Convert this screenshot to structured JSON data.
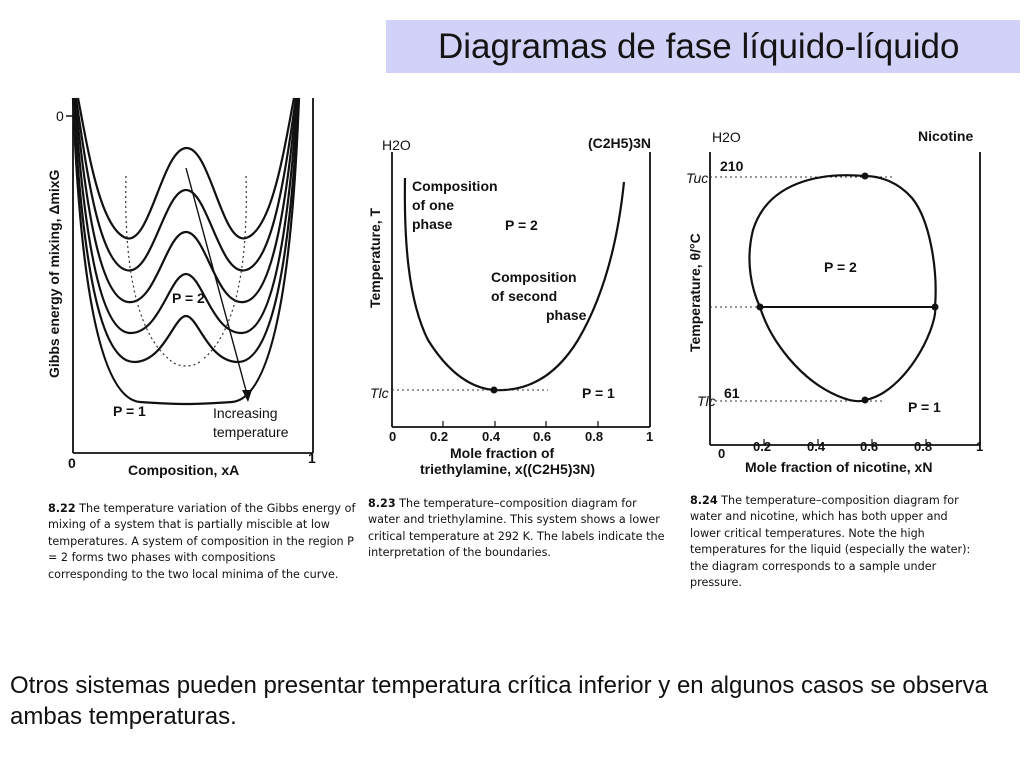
{
  "title": "Diagramas de fase líquido-líquido",
  "footer": "Otros sistemas pueden presentar temperatura crítica inferior y en algunos casos se observa ambas temperaturas.",
  "figures": [
    {
      "number": "8.22",
      "caption": "The temperature variation of the Gibbs energy of mixing of a system that is partially miscible at low temperatures. A system of composition in the region P = 2 forms two phases with compositions corresponding to the two local minima of the curve.",
      "ylabel": "Gibbs energy of mixing, ΔmixG",
      "xlabel": "Composition, xA",
      "y_zero": "0",
      "x_min": "0",
      "x_max": "1",
      "label_p2": "P = 2",
      "label_p1": "P = 1",
      "arrow_label_1": "Increasing",
      "arrow_label_2": "temperature"
    },
    {
      "number": "8.23",
      "caption": "The temperature–composition diagram for water and triethylamine. This system shows a lower critical temperature at 292 K. The labels indicate the interpretation of the boundaries.",
      "left_component": "H2O",
      "right_component": "(C2H5)3N",
      "ylabel": "Temperature, T",
      "xlabel_1": "Mole fraction of",
      "xlabel_2": "triethylamine, x((C2H5)3N)",
      "tick_labels": [
        "0",
        "0.2",
        "0.4",
        "0.6",
        "0.8",
        "1"
      ],
      "critical_label": "Tlc",
      "label_comp_one": [
        "Composition",
        "of one",
        "phase"
      ],
      "label_comp_two": [
        "Composition",
        "of second",
        "phase"
      ],
      "label_p2": "P = 2",
      "label_p1": "P = 1"
    },
    {
      "number": "8.24",
      "caption": "The temperature–composition diagram for water and nicotine, which has both upper and lower critical temperatures. Note the high temperatures for the liquid (especially the water): the diagram corresponds to a sample under pressure.",
      "left_component": "H2O",
      "right_component": "Nicotine",
      "ylabel": "Temperature, θ/°C",
      "xlabel": "Mole fraction of nicotine, xN",
      "tick_labels": [
        "0",
        "0.2",
        "0.4",
        "0.6",
        "0.8",
        "1"
      ],
      "upper_label": "Tuc",
      "upper_value": "210",
      "lower_label": "Tlc",
      "lower_value": "61",
      "label_p2": "P = 2",
      "label_p1": "P = 1"
    }
  ],
  "chart_data": [
    {
      "type": "line",
      "title": "",
      "xlabel": "Composition, xA",
      "ylabel": "Gibbs energy of mixing, ΔmixG",
      "xlim": [
        0,
        1
      ],
      "note": "Family of Gibbs energy curves; lower curves correspond to higher temperature",
      "series": [
        {
          "values": [
            0,
            -0.25,
            -0.55,
            -0.3,
            -0.55,
            -0.25,
            0
          ],
          "x": [
            0,
            0.1,
            0.3,
            0.5,
            0.7,
            0.9,
            1
          ]
        },
        {
          "values": [
            0,
            -0.3,
            -0.62,
            -0.45,
            -0.62,
            -0.3,
            0
          ],
          "x": [
            0,
            0.1,
            0.3,
            0.5,
            0.7,
            0.9,
            1
          ]
        },
        {
          "values": [
            0,
            -0.34,
            -0.68,
            -0.58,
            -0.68,
            -0.34,
            0
          ],
          "x": [
            0,
            0.1,
            0.3,
            0.5,
            0.7,
            0.9,
            1
          ]
        },
        {
          "values": [
            0,
            -0.38,
            -0.75,
            -0.72,
            -0.75,
            -0.38,
            0
          ],
          "x": [
            0,
            0.1,
            0.3,
            0.5,
            0.7,
            0.9,
            1
          ]
        },
        {
          "values": [
            0,
            -0.42,
            -0.83,
            -0.86,
            -0.83,
            -0.42,
            0
          ],
          "x": [
            0,
            0.1,
            0.3,
            0.5,
            0.7,
            0.9,
            1
          ]
        },
        {
          "values": [
            0,
            -0.46,
            -0.92,
            -1.0,
            -0.92,
            -0.46,
            0
          ],
          "x": [
            0,
            0.1,
            0.3,
            0.5,
            0.7,
            0.9,
            1
          ]
        }
      ]
    },
    {
      "type": "line",
      "title": "",
      "xlabel": "Mole fraction of triethylamine, x((C2H5)3N)",
      "ylabel": "Temperature, T",
      "xlim": [
        0,
        1
      ],
      "critical_point": {
        "x": 0.4,
        "label": "Tlc"
      },
      "series": [
        {
          "x": [
            0.04,
            0.08,
            0.15,
            0.25,
            0.4,
            0.55,
            0.7,
            0.8,
            0.88,
            0.92
          ],
          "values": [
            1.0,
            0.6,
            0.3,
            0.1,
            0.0,
            0.07,
            0.25,
            0.5,
            0.8,
            1.0
          ]
        }
      ]
    },
    {
      "type": "line",
      "title": "",
      "xlabel": "Mole fraction of nicotine, xN",
      "ylabel": "Temperature, θ/°C",
      "xlim": [
        0,
        1
      ],
      "ylim": [
        61,
        210
      ],
      "critical_points": [
        {
          "label": "Tuc",
          "x": 0.58,
          "y": 210
        },
        {
          "label": "Tlc",
          "x": 0.58,
          "y": 61
        }
      ],
      "tie_line": {
        "x": [
          0.17,
          0.84
        ]
      },
      "series": [
        {
          "x": [
            0.58,
            0.3,
            0.15,
            0.17,
            0.3,
            0.58,
            0.78,
            0.84,
            0.8,
            0.58
          ],
          "values": [
            210,
            195,
            150,
            125,
            85,
            61,
            85,
            125,
            180,
            210
          ]
        }
      ]
    }
  ]
}
